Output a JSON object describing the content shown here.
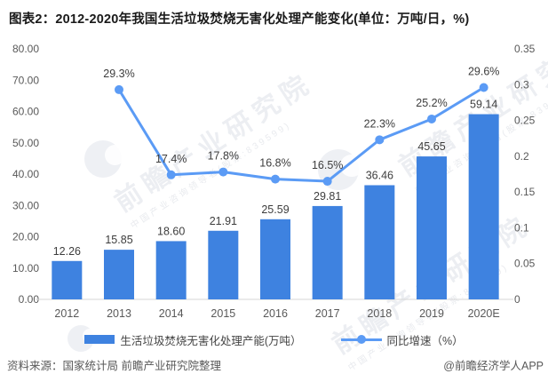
{
  "title": "图表2：2012-2020年我国生活垃圾焚烧无害化处理产能变化(单位：万吨/日，%)",
  "chart_data": {
    "type": "combo-bar-line-dual-axis",
    "categories": [
      "2012",
      "2013",
      "2014",
      "2015",
      "2016",
      "2017",
      "2018",
      "2019",
      "2020E"
    ],
    "series": [
      {
        "name": "生活垃圾焚烧无害化处理产能(万吨）",
        "chart_type": "bar",
        "axis": "left",
        "color": "#3E82E0",
        "values": [
          12.26,
          15.85,
          18.6,
          21.91,
          25.59,
          29.81,
          36.46,
          45.65,
          59.14
        ],
        "value_labels": [
          "12.26",
          "15.85",
          "18.60",
          "21.91",
          "25.59",
          "29.81",
          "36.46",
          "45.65",
          "59.14"
        ]
      },
      {
        "name": "同比增速（%）",
        "chart_type": "line",
        "axis": "right",
        "color": "#5B9BF5",
        "values_percent": [
          null,
          29.3,
          17.4,
          17.8,
          16.8,
          16.5,
          22.3,
          25.2,
          29.6
        ],
        "value_labels": [
          null,
          "29.3%",
          "17.4%",
          "17.8%",
          "16.8%",
          "16.5%",
          "22.3%",
          "25.2%",
          "29.6%"
        ]
      }
    ],
    "left_axis": {
      "min": 0,
      "max": 80,
      "step": 10,
      "tick_labels": [
        "0.00",
        "10.00",
        "20.00",
        "30.00",
        "40.00",
        "50.00",
        "60.00",
        "70.00",
        "80.00"
      ]
    },
    "right_axis": {
      "min": 0,
      "max": 0.35,
      "step": 0.05,
      "tick_labels": [
        "0",
        "0.05",
        "0.1",
        "0.15",
        "0.2",
        "0.25",
        "0.3",
        "0.35"
      ]
    },
    "grid": false,
    "legend_position": "bottom"
  },
  "legend": {
    "items": [
      {
        "label": "生活垃圾焚烧无害化处理产能(万吨）",
        "swatch": "bar",
        "color": "#3E82E0"
      },
      {
        "label": "同比增速（%）",
        "swatch": "line-dot",
        "color": "#5B9BF5"
      }
    ]
  },
  "footer": {
    "source": "资料来源：国家统计局 前瞻产业研究院整理",
    "credit": "@前瞻经济学人APP"
  },
  "watermark": {
    "main": "前瞻产业研究院",
    "sub": "中国产业咨询领导者(股票:839599)"
  },
  "colors": {
    "bar": "#3E82E0",
    "line": "#5B9BF5",
    "axis_text": "#595959",
    "label_text": "#3D3D3D",
    "axis_line": "#D6D6D6",
    "title_text": "#1A1A1A"
  }
}
